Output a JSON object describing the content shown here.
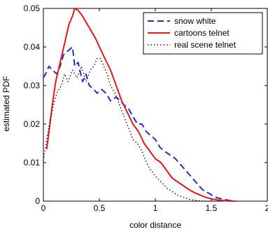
{
  "chart_data": {
    "type": "line",
    "title": "",
    "xlabel": "color distance",
    "ylabel": "estimated PDF",
    "xlim": [
      0,
      2
    ],
    "ylim": [
      0,
      0.05
    ],
    "xticks": [
      "0",
      "0.5",
      "1",
      "1.5",
      "2"
    ],
    "yticks": [
      "0",
      "0.01",
      "0.02",
      "0.03",
      "0.04",
      "0.05"
    ],
    "grid": false,
    "legend_position": "top-right",
    "series": [
      {
        "name": "snow white",
        "color": "#1f2fd6",
        "style": "dashed",
        "points": [
          [
            0.0,
            0.032
          ],
          [
            0.02,
            0.033
          ],
          [
            0.05,
            0.035
          ],
          [
            0.08,
            0.034
          ],
          [
            0.12,
            0.033
          ],
          [
            0.15,
            0.035
          ],
          [
            0.18,
            0.038
          ],
          [
            0.22,
            0.039
          ],
          [
            0.26,
            0.04
          ],
          [
            0.28,
            0.035
          ],
          [
            0.31,
            0.036
          ],
          [
            0.35,
            0.031
          ],
          [
            0.38,
            0.033
          ],
          [
            0.41,
            0.03
          ],
          [
            0.45,
            0.029
          ],
          [
            0.48,
            0.028
          ],
          [
            0.52,
            0.029
          ],
          [
            0.56,
            0.028
          ],
          [
            0.6,
            0.026
          ],
          [
            0.65,
            0.027
          ],
          [
            0.69,
            0.026
          ],
          [
            0.72,
            0.025
          ],
          [
            0.76,
            0.024
          ],
          [
            0.8,
            0.022
          ],
          [
            0.84,
            0.02
          ],
          [
            0.88,
            0.02
          ],
          [
            0.92,
            0.018
          ],
          [
            0.96,
            0.017
          ],
          [
            1.0,
            0.016
          ],
          [
            1.04,
            0.014
          ],
          [
            1.08,
            0.013
          ],
          [
            1.13,
            0.012
          ],
          [
            1.18,
            0.011
          ],
          [
            1.24,
            0.009
          ],
          [
            1.3,
            0.007
          ],
          [
            1.36,
            0.005
          ],
          [
            1.42,
            0.003
          ],
          [
            1.48,
            0.002
          ],
          [
            1.54,
            0.001
          ],
          [
            1.6,
            0.0005
          ],
          [
            1.66,
            0.0002
          ],
          [
            1.7,
            0.0001
          ]
        ]
      },
      {
        "name": "cartoons telnet",
        "color": "#e8151a",
        "style": "solid",
        "points": [
          [
            0.03,
            0.0135
          ],
          [
            0.05,
            0.018
          ],
          [
            0.08,
            0.025
          ],
          [
            0.11,
            0.031
          ],
          [
            0.15,
            0.036
          ],
          [
            0.19,
            0.041
          ],
          [
            0.23,
            0.046
          ],
          [
            0.26,
            0.048
          ],
          [
            0.28,
            0.05
          ],
          [
            0.31,
            0.0495
          ],
          [
            0.35,
            0.048
          ],
          [
            0.39,
            0.046
          ],
          [
            0.43,
            0.044
          ],
          [
            0.47,
            0.042
          ],
          [
            0.5,
            0.04
          ],
          [
            0.55,
            0.037
          ],
          [
            0.6,
            0.034
          ],
          [
            0.65,
            0.03
          ],
          [
            0.7,
            0.026
          ],
          [
            0.75,
            0.023
          ],
          [
            0.8,
            0.02
          ],
          [
            0.85,
            0.018
          ],
          [
            0.9,
            0.015
          ],
          [
            0.95,
            0.013
          ],
          [
            1.0,
            0.011
          ],
          [
            1.05,
            0.01
          ],
          [
            1.1,
            0.008
          ],
          [
            1.15,
            0.006
          ],
          [
            1.2,
            0.005
          ],
          [
            1.25,
            0.004
          ],
          [
            1.3,
            0.003
          ],
          [
            1.35,
            0.0022
          ],
          [
            1.4,
            0.0016
          ],
          [
            1.45,
            0.001
          ],
          [
            1.5,
            0.0006
          ],
          [
            1.56,
            0.0003
          ],
          [
            1.62,
            0.0001
          ],
          [
            1.68,
            0.0
          ],
          [
            1.72,
            0.0
          ]
        ]
      },
      {
        "name": "real scene telnet",
        "color": "#000000",
        "style": "dotted",
        "points": [
          [
            0.0,
            0.0105
          ],
          [
            0.03,
            0.016
          ],
          [
            0.06,
            0.021
          ],
          [
            0.09,
            0.025
          ],
          [
            0.12,
            0.028
          ],
          [
            0.16,
            0.03
          ],
          [
            0.19,
            0.033
          ],
          [
            0.22,
            0.031
          ],
          [
            0.26,
            0.034
          ],
          [
            0.3,
            0.032
          ],
          [
            0.34,
            0.035
          ],
          [
            0.38,
            0.031
          ],
          [
            0.42,
            0.034
          ],
          [
            0.45,
            0.035
          ],
          [
            0.48,
            0.037
          ],
          [
            0.51,
            0.037
          ],
          [
            0.54,
            0.035
          ],
          [
            0.57,
            0.033
          ],
          [
            0.6,
            0.03
          ],
          [
            0.64,
            0.028
          ],
          [
            0.68,
            0.025
          ],
          [
            0.72,
            0.022
          ],
          [
            0.76,
            0.019
          ],
          [
            0.8,
            0.016
          ],
          [
            0.84,
            0.015
          ],
          [
            0.88,
            0.013
          ],
          [
            0.92,
            0.01
          ],
          [
            0.96,
            0.008
          ],
          [
            1.0,
            0.0065
          ],
          [
            1.05,
            0.005
          ],
          [
            1.1,
            0.0035
          ],
          [
            1.15,
            0.0025
          ],
          [
            1.2,
            0.0015
          ],
          [
            1.25,
            0.001
          ],
          [
            1.3,
            0.0005
          ],
          [
            1.36,
            0.0002
          ],
          [
            1.42,
            0.0
          ],
          [
            1.5,
            0.0
          ]
        ]
      }
    ]
  }
}
